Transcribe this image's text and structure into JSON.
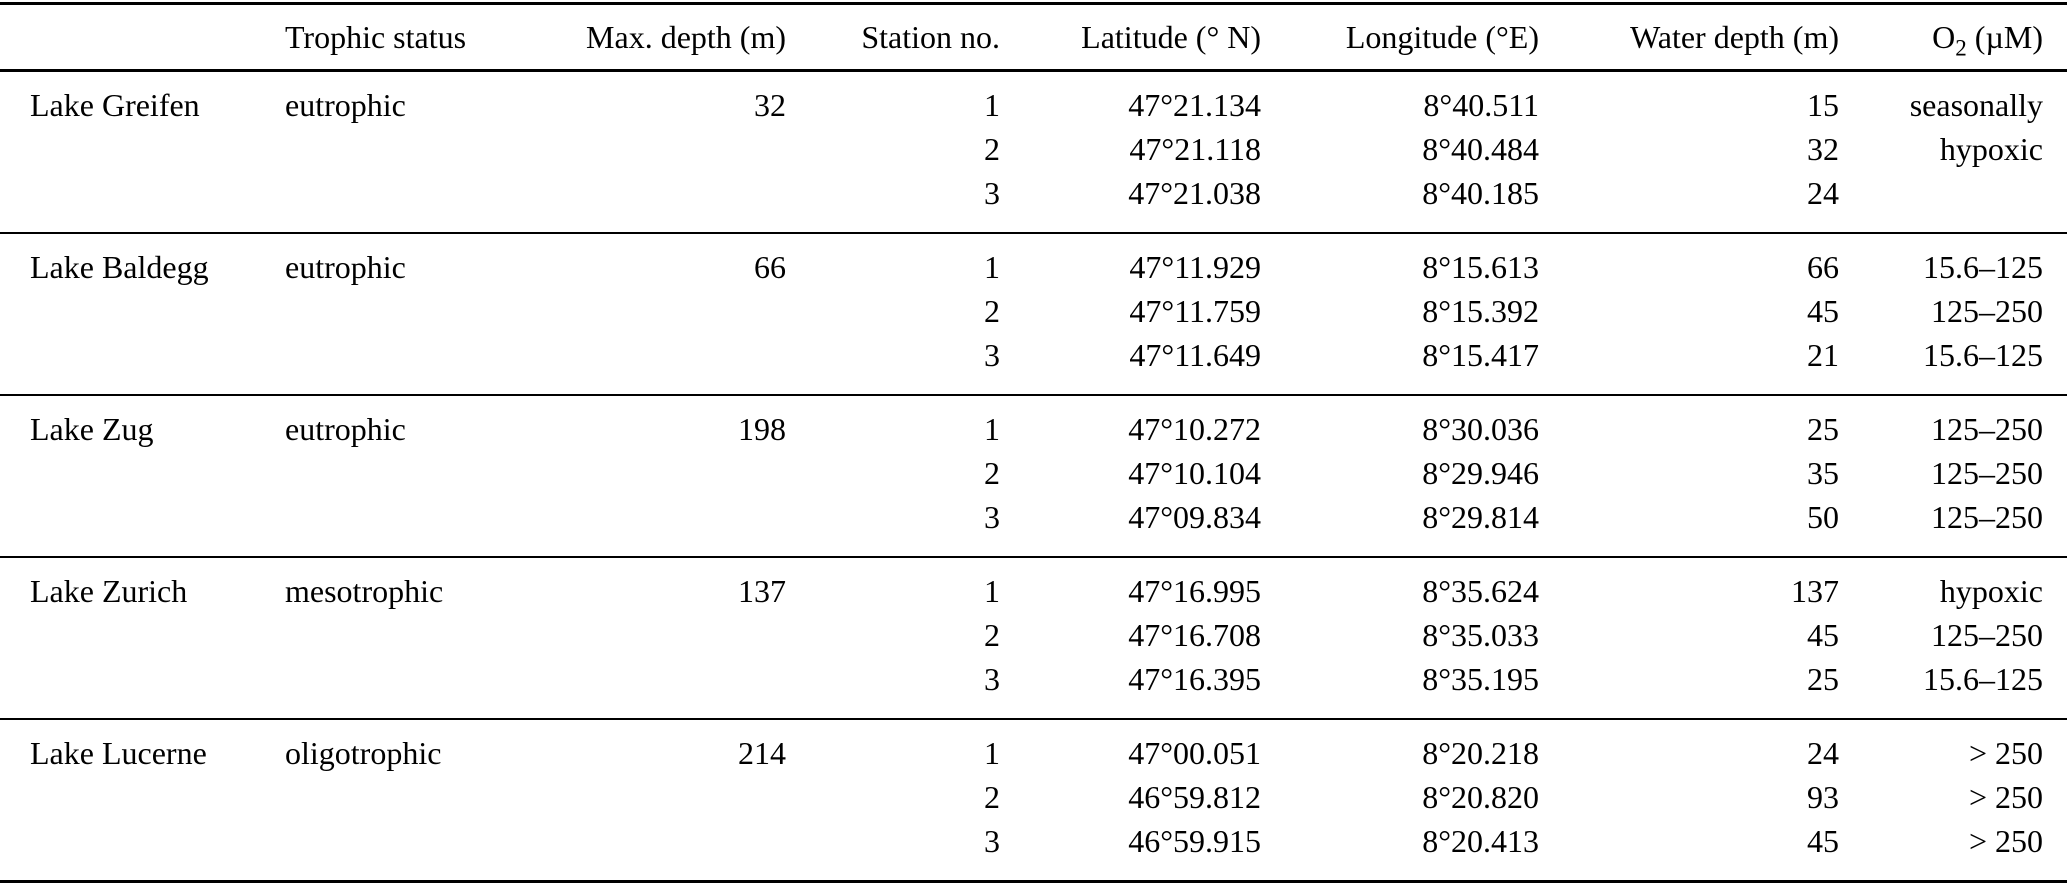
{
  "table": {
    "header": {
      "lake": "",
      "trophic": "Trophic status",
      "max_depth": "Max. depth (m)",
      "station": "Station no.",
      "latitude": "Latitude (° N)",
      "longitude": "Longitude (°E)",
      "water_depth": "Water depth (m)",
      "o2": {
        "symbol": "O",
        "sub": "2",
        "unit": " (µM)"
      }
    },
    "groups": [
      {
        "lake": "Lake Greifen",
        "trophic": "eutrophic",
        "max_depth": "32",
        "rows": [
          {
            "station": "1",
            "lat": "47°21.134",
            "lon": "8°40.511",
            "depth": "15",
            "o2": "seasonally"
          },
          {
            "station": "2",
            "lat": "47°21.118",
            "lon": "8°40.484",
            "depth": "32",
            "o2": "hypoxic"
          },
          {
            "station": "3",
            "lat": "47°21.038",
            "lon": "8°40.185",
            "depth": "24",
            "o2": ""
          }
        ]
      },
      {
        "lake": "Lake Baldegg",
        "trophic": "eutrophic",
        "max_depth": "66",
        "rows": [
          {
            "station": "1",
            "lat": "47°11.929",
            "lon": "8°15.613",
            "depth": "66",
            "o2": "15.6–125"
          },
          {
            "station": "2",
            "lat": "47°11.759",
            "lon": "8°15.392",
            "depth": "45",
            "o2": "125–250"
          },
          {
            "station": "3",
            "lat": "47°11.649",
            "lon": "8°15.417",
            "depth": "21",
            "o2": "15.6–125"
          }
        ]
      },
      {
        "lake": "Lake Zug",
        "trophic": "eutrophic",
        "max_depth": "198",
        "rows": [
          {
            "station": "1",
            "lat": "47°10.272",
            "lon": "8°30.036",
            "depth": "25",
            "o2": "125–250"
          },
          {
            "station": "2",
            "lat": "47°10.104",
            "lon": "8°29.946",
            "depth": "35",
            "o2": "125–250"
          },
          {
            "station": "3",
            "lat": "47°09.834",
            "lon": "8°29.814",
            "depth": "50",
            "o2": "125–250"
          }
        ]
      },
      {
        "lake": "Lake Zurich",
        "trophic": "mesotrophic",
        "max_depth": "137",
        "rows": [
          {
            "station": "1",
            "lat": "47°16.995",
            "lon": "8°35.624",
            "depth": "137",
            "o2": "hypoxic"
          },
          {
            "station": "2",
            "lat": "47°16.708",
            "lon": "8°35.033",
            "depth": "45",
            "o2": "125–250"
          },
          {
            "station": "3",
            "lat": "47°16.395",
            "lon": "8°35.195",
            "depth": "25",
            "o2": "15.6–125"
          }
        ]
      },
      {
        "lake": "Lake Lucerne",
        "trophic": "oligotrophic",
        "max_depth": "214",
        "rows": [
          {
            "station": "1",
            "lat": "47°00.051",
            "lon": "8°20.218",
            "depth": "24",
            "o2": "> 250"
          },
          {
            "station": "2",
            "lat": "46°59.812",
            "lon": "8°20.820",
            "depth": "93",
            "o2": "> 250"
          },
          {
            "station": "3",
            "lat": "46°59.915",
            "lon": "8°20.413",
            "depth": "45",
            "o2": "> 250"
          }
        ]
      }
    ]
  }
}
